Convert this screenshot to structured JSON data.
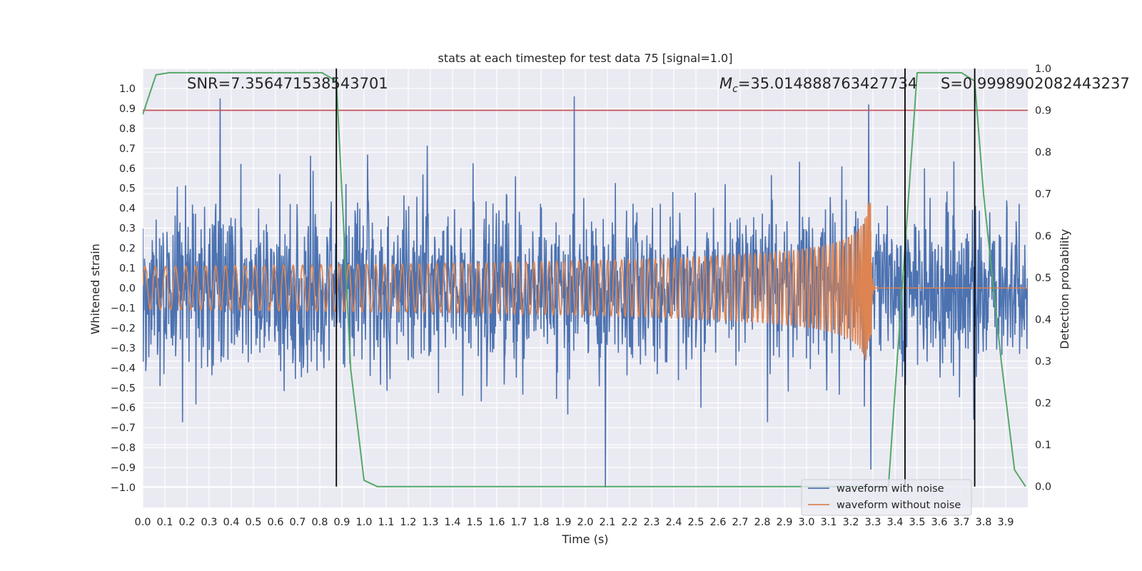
{
  "chart_data": {
    "type": "line",
    "title": "stats at each timestep for test data 75 [signal=1.0]",
    "xlabel": "Time (s)",
    "ylabel": "Whitened strain",
    "y2label": "Detection probability",
    "xlim": [
      0.0,
      4.0
    ],
    "ylim": [
      -1.1,
      1.1
    ],
    "y2lim": [
      -0.05,
      1.0
    ],
    "x_ticks": [
      "0.0",
      "0.1",
      "0.2",
      "0.3",
      "0.4",
      "0.5",
      "0.6",
      "0.7",
      "0.8",
      "0.9",
      "1.0",
      "1.1",
      "1.2",
      "1.3",
      "1.4",
      "1.5",
      "1.6",
      "1.7",
      "1.8",
      "1.9",
      "2.0",
      "2.1",
      "2.2",
      "2.3",
      "2.4",
      "2.5",
      "2.6",
      "2.7",
      "2.8",
      "2.9",
      "3.0",
      "3.1",
      "3.2",
      "3.3",
      "3.4",
      "3.5",
      "3.6",
      "3.7",
      "3.8",
      "3.9"
    ],
    "y_ticks": [
      "1.0",
      "0.9",
      "0.8",
      "0.7",
      "0.6",
      "0.5",
      "0.4",
      "0.3",
      "0.2",
      "0.1",
      "0.0",
      "−0.1",
      "−0.2",
      "−0.3",
      "−0.4",
      "−0.5",
      "−0.6",
      "−0.7",
      "−0.8",
      "−0.9",
      "−1.0"
    ],
    "y2_ticks": [
      "1.0",
      "0.9",
      "0.8",
      "0.7",
      "0.6",
      "0.5",
      "0.4",
      "0.3",
      "0.2",
      "0.1",
      "0.0"
    ],
    "annotations": {
      "snr": "SNR=7.356471538543701",
      "mc_symbol": "M",
      "mc_sub": "c",
      "mc_value": "=35.014888763427734",
      "s": "S=0.9998902082443237"
    },
    "threshold": {
      "axis": "right",
      "value": 0.9,
      "color": "#c44e52"
    },
    "vertical_lines": [
      0.875,
      3.445,
      3.76
    ],
    "series": [
      {
        "name": "waveform with noise",
        "color": "#4c72b0",
        "axis": "left",
        "kind": "noise",
        "std": 0.21,
        "peaks": [
          [
            0.35,
            0.95
          ],
          [
            1.95,
            0.96
          ],
          [
            3.28,
            0.92
          ],
          [
            2.09,
            -1.0
          ],
          [
            3.29,
            -0.91
          ]
        ]
      },
      {
        "name": "waveform without noise",
        "color": "#dd8452",
        "axis": "left",
        "kind": "chirp",
        "merger_time": 3.29,
        "peak_amplitude": 0.43,
        "t_start": 0.0,
        "t_end": 4.0
      },
      {
        "name": "detection probability",
        "color": "#55a868",
        "axis": "right",
        "x": [
          0.0,
          0.06,
          0.12,
          0.3,
          0.5,
          0.81,
          0.875,
          0.94,
          1.0,
          1.06,
          2.0,
          3.0,
          3.37,
          3.5,
          3.6,
          3.7,
          3.76,
          3.8,
          3.88,
          3.94,
          3.99
        ],
        "y": [
          0.89,
          0.985,
          0.99,
          0.99,
          0.99,
          0.99,
          0.97,
          0.28,
          0.015,
          0.0,
          0.0,
          0.0,
          0.0,
          0.99,
          0.99,
          0.99,
          0.97,
          0.7,
          0.3,
          0.04,
          0.0
        ]
      }
    ],
    "legend": {
      "position": "bottom-right",
      "entries": [
        "waveform with noise",
        "waveform without noise"
      ]
    }
  }
}
